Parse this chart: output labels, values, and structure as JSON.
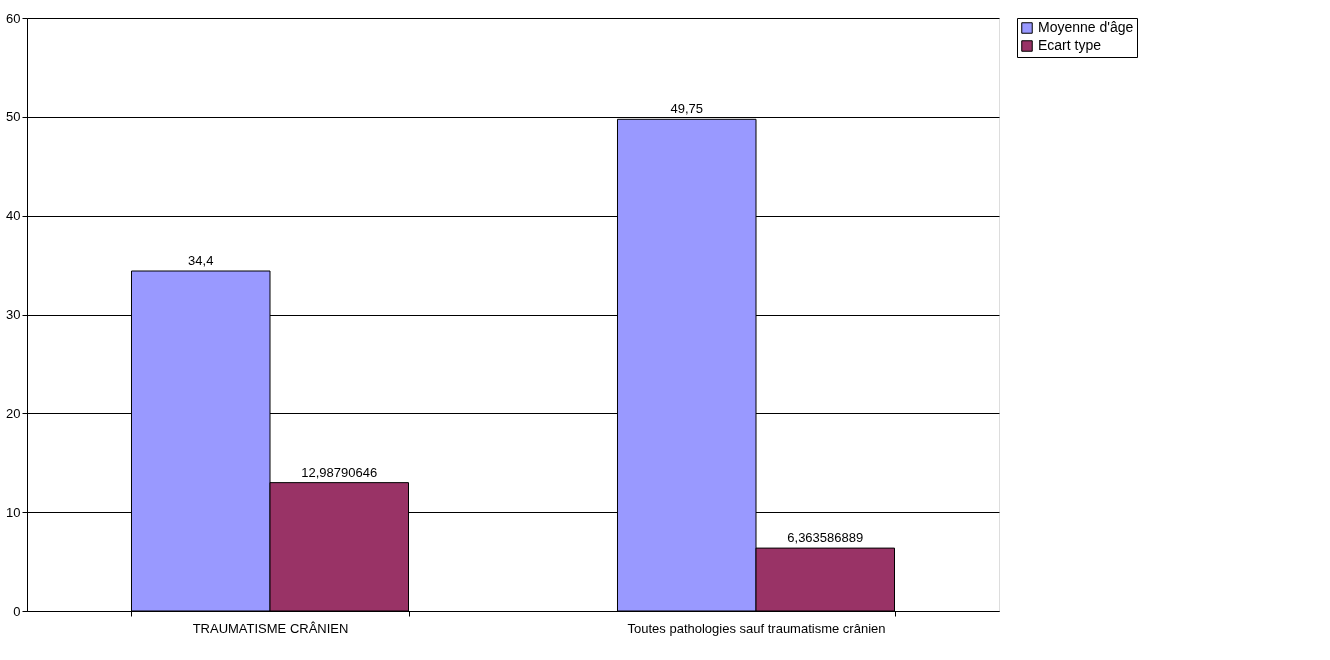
{
  "chart_data": {
    "type": "bar",
    "categories": [
      "TRAUMATISME CRÂNIEN",
      "Toutes pathologies sauf traumatisme crânien"
    ],
    "series": [
      {
        "name": "Moyenne d'âge",
        "color": "#9999ff",
        "values": [
          34.4,
          49.75
        ],
        "value_labels": [
          "34,4",
          "49,75"
        ]
      },
      {
        "name": "Ecart type",
        "color": "#993366",
        "values": [
          12.98790646,
          6.363586889
        ],
        "value_labels": [
          "12,98790646",
          "6,363586889"
        ]
      }
    ],
    "ylim": [
      0,
      60
    ],
    "yticks": [
      0,
      10,
      20,
      30,
      40,
      50,
      60
    ],
    "grid": "y",
    "legend": "right"
  }
}
